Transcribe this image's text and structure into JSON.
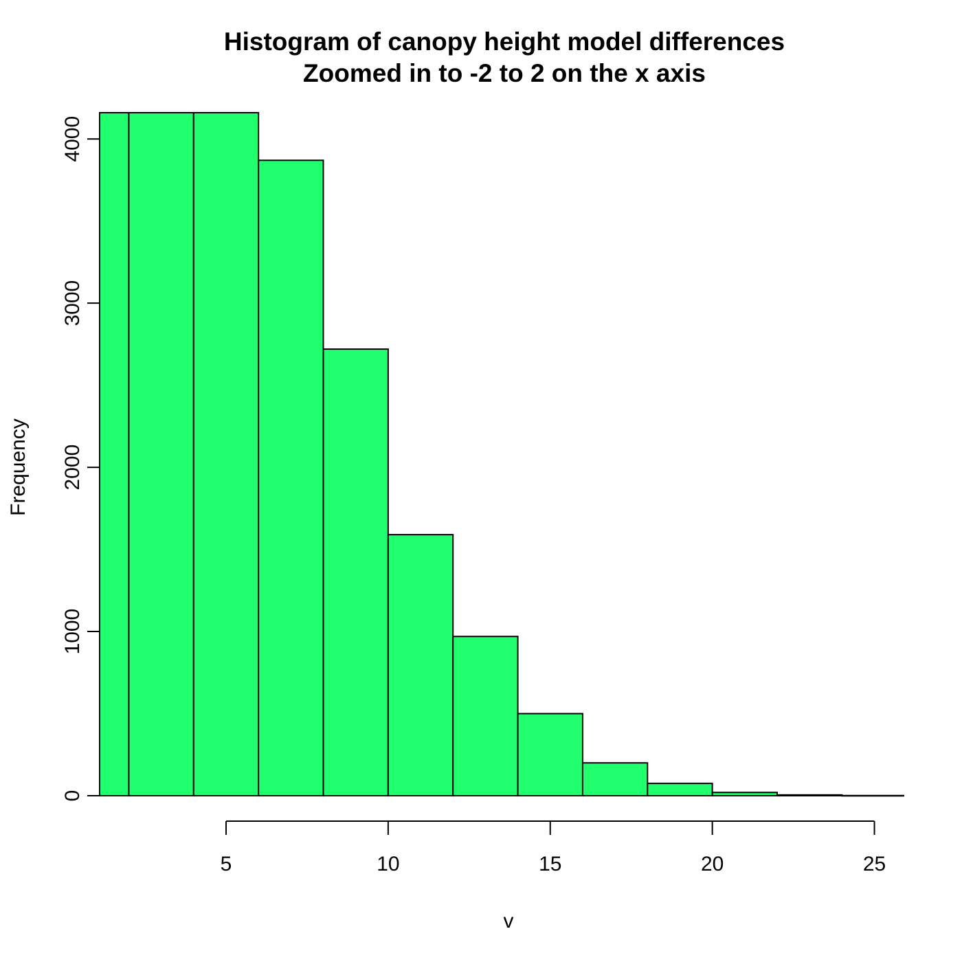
{
  "chart_data": {
    "type": "bar",
    "title": "Histogram of canopy height model differences",
    "subtitle": "Zoomed in to -2 to 2 on the x axis",
    "xlabel": "v",
    "ylabel": "Frequency",
    "xlim": [
      1.1,
      25.9
    ],
    "ylim": [
      0,
      4160
    ],
    "x_ticks": [
      5,
      10,
      15,
      20,
      25
    ],
    "y_ticks": [
      0,
      1000,
      2000,
      3000,
      4000
    ],
    "bar_color": "#22ff6e",
    "bins": [
      {
        "start": 0,
        "end": 2,
        "count": 4160
      },
      {
        "start": 2,
        "end": 4,
        "count": 4160
      },
      {
        "start": 4,
        "end": 6,
        "count": 4160
      },
      {
        "start": 6,
        "end": 8,
        "count": 3870
      },
      {
        "start": 8,
        "end": 10,
        "count": 2720
      },
      {
        "start": 10,
        "end": 12,
        "count": 1590
      },
      {
        "start": 12,
        "end": 14,
        "count": 970
      },
      {
        "start": 14,
        "end": 16,
        "count": 500
      },
      {
        "start": 16,
        "end": 18,
        "count": 200
      },
      {
        "start": 18,
        "end": 20,
        "count": 75
      },
      {
        "start": 20,
        "end": 22,
        "count": 20
      },
      {
        "start": 22,
        "end": 24,
        "count": 5
      },
      {
        "start": 24,
        "end": 26,
        "count": 1
      }
    ]
  }
}
